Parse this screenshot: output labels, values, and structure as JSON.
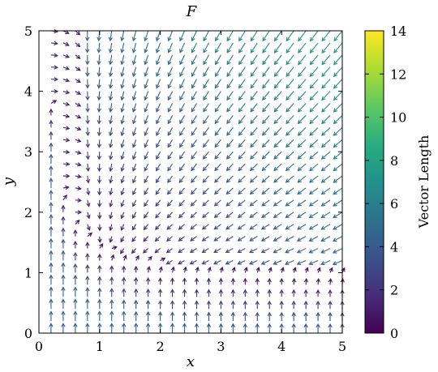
{
  "chart_data": {
    "type": "quiver",
    "title": "F",
    "xlabel": "x",
    "ylabel": "y",
    "xlim": [
      0,
      5
    ],
    "ylim": [
      0,
      5
    ],
    "x_ticks": [
      "0",
      "1",
      "2",
      "3",
      "4",
      "5"
    ],
    "y_ticks": [
      "0",
      "1",
      "2",
      "3",
      "4",
      "5"
    ],
    "grid": false,
    "field": {
      "x_range": [
        0.2,
        5.0
      ],
      "y_range": [
        0.0,
        5.0
      ],
      "samples_x": 25,
      "samples_y": 26,
      "sample_points": [
        {
          "x": 0.2,
          "y": 0.2,
          "u": 0.0,
          "v": 4.5
        },
        {
          "x": 1.0,
          "y": 0.2,
          "u": 0.0,
          "v": 4.4
        },
        {
          "x": 4.0,
          "y": 0.2,
          "u": 0.0,
          "v": 4.4
        },
        {
          "x": 0.2,
          "y": 2.0,
          "u": 1.8,
          "v": 0.0
        },
        {
          "x": 2.0,
          "y": 2.0,
          "u": -1.6,
          "v": -1.5
        },
        {
          "x": 4.0,
          "y": 4.0,
          "u": -3.2,
          "v": -5.4
        },
        {
          "x": 5.0,
          "y": 5.0,
          "u": -4.3,
          "v": -8.0
        },
        {
          "x": 0.2,
          "y": 4.8,
          "u": 0.2,
          "v": 0.0
        },
        {
          "x": 3.0,
          "y": 1.15,
          "u": 0.0,
          "v": 0.1
        }
      ]
    },
    "colorbar": {
      "label": "Vector Length",
      "range": [
        0,
        14
      ],
      "ticks": [
        "0",
        "2",
        "4",
        "6",
        "8",
        "10",
        "12",
        "14"
      ],
      "colormap": "viridis"
    }
  },
  "colors": {
    "viridis": [
      "#440154",
      "#472d7b",
      "#3b528b",
      "#2c728e",
      "#21918c",
      "#28ae80",
      "#5ec962",
      "#addc30",
      "#fde725"
    ]
  }
}
